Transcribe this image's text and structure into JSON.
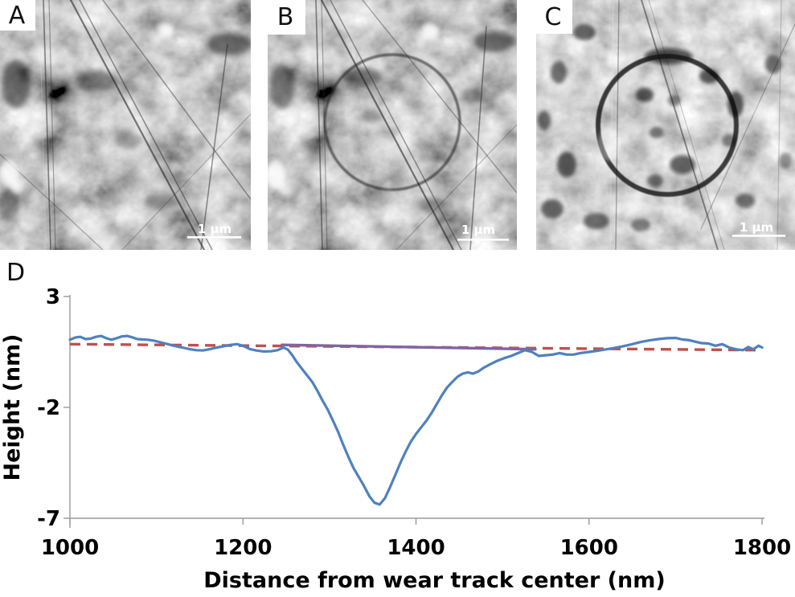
{
  "figure": {
    "panels": [
      {
        "label": "A",
        "scale_bar_label": "1 μm"
      },
      {
        "label": "B",
        "scale_bar_label": "1 μm"
      },
      {
        "label": "C",
        "scale_bar_label": "1 μm"
      }
    ],
    "chart_panel_label": "D"
  },
  "chart_data": {
    "type": "line",
    "title": "",
    "xlabel": "Distance from wear track center (nm)",
    "ylabel": "Height (nm)",
    "xlim": [
      1000,
      1800
    ],
    "ylim": [
      -7,
      3
    ],
    "xticks": [
      1000,
      1200,
      1400,
      1600,
      1800
    ],
    "yticks": [
      3,
      -2,
      -7
    ],
    "grid": false,
    "legend": false,
    "axis_color": "#9a9a9a",
    "series": [
      {
        "name": "baseline-fit-dashed",
        "color": "#C0504D",
        "style": "dashed",
        "width": 3.4,
        "points": [
          [
            1000,
            0.85
          ],
          [
            1800,
            0.58
          ]
        ]
      },
      {
        "name": "indent-region-level",
        "color": "#8064A2",
        "style": "solid",
        "width": 3.4,
        "points": [
          [
            1245,
            0.82
          ],
          [
            1538,
            0.62
          ]
        ]
      },
      {
        "name": "afm-height-profile",
        "color": "#4F81BD",
        "style": "solid",
        "width": 3.2,
        "points": [
          [
            1000,
            1.05
          ],
          [
            1006,
            1.15
          ],
          [
            1012,
            1.18
          ],
          [
            1018,
            1.08
          ],
          [
            1024,
            1.1
          ],
          [
            1030,
            1.18
          ],
          [
            1036,
            1.22
          ],
          [
            1042,
            1.12
          ],
          [
            1048,
            1.05
          ],
          [
            1054,
            1.12
          ],
          [
            1060,
            1.2
          ],
          [
            1066,
            1.22
          ],
          [
            1072,
            1.16
          ],
          [
            1078,
            1.08
          ],
          [
            1084,
            1.06
          ],
          [
            1090,
            1.05
          ],
          [
            1098,
            1.0
          ],
          [
            1106,
            0.92
          ],
          [
            1114,
            0.84
          ],
          [
            1122,
            0.76
          ],
          [
            1130,
            0.7
          ],
          [
            1138,
            0.63
          ],
          [
            1146,
            0.58
          ],
          [
            1154,
            0.57
          ],
          [
            1162,
            0.63
          ],
          [
            1170,
            0.7
          ],
          [
            1178,
            0.76
          ],
          [
            1186,
            0.82
          ],
          [
            1193,
            0.85
          ],
          [
            1200,
            0.78
          ],
          [
            1208,
            0.63
          ],
          [
            1216,
            0.56
          ],
          [
            1224,
            0.52
          ],
          [
            1232,
            0.53
          ],
          [
            1240,
            0.58
          ],
          [
            1247,
            0.7
          ],
          [
            1252,
            0.6
          ],
          [
            1257,
            0.35
          ],
          [
            1262,
            0.05
          ],
          [
            1268,
            -0.25
          ],
          [
            1274,
            -0.55
          ],
          [
            1280,
            -0.85
          ],
          [
            1286,
            -1.25
          ],
          [
            1292,
            -1.7
          ],
          [
            1298,
            -2.1
          ],
          [
            1304,
            -2.6
          ],
          [
            1310,
            -3.1
          ],
          [
            1316,
            -3.7
          ],
          [
            1322,
            -4.25
          ],
          [
            1328,
            -4.75
          ],
          [
            1334,
            -5.15
          ],
          [
            1340,
            -5.55
          ],
          [
            1346,
            -6.0
          ],
          [
            1352,
            -6.3
          ],
          [
            1358,
            -6.38
          ],
          [
            1364,
            -6.1
          ],
          [
            1370,
            -5.6
          ],
          [
            1376,
            -5.05
          ],
          [
            1382,
            -4.5
          ],
          [
            1388,
            -4.0
          ],
          [
            1394,
            -3.55
          ],
          [
            1400,
            -3.2
          ],
          [
            1406,
            -2.9
          ],
          [
            1412,
            -2.6
          ],
          [
            1418,
            -2.25
          ],
          [
            1424,
            -1.85
          ],
          [
            1430,
            -1.45
          ],
          [
            1436,
            -1.1
          ],
          [
            1442,
            -0.85
          ],
          [
            1448,
            -0.62
          ],
          [
            1454,
            -0.48
          ],
          [
            1460,
            -0.42
          ],
          [
            1466,
            -0.48
          ],
          [
            1472,
            -0.38
          ],
          [
            1478,
            -0.22
          ],
          [
            1486,
            -0.05
          ],
          [
            1494,
            0.1
          ],
          [
            1502,
            0.22
          ],
          [
            1510,
            0.32
          ],
          [
            1518,
            0.45
          ],
          [
            1526,
            0.58
          ],
          [
            1534,
            0.5
          ],
          [
            1542,
            0.32
          ],
          [
            1550,
            0.35
          ],
          [
            1558,
            0.38
          ],
          [
            1566,
            0.45
          ],
          [
            1574,
            0.38
          ],
          [
            1582,
            0.38
          ],
          [
            1590,
            0.45
          ],
          [
            1600,
            0.5
          ],
          [
            1610,
            0.55
          ],
          [
            1620,
            0.62
          ],
          [
            1630,
            0.68
          ],
          [
            1640,
            0.76
          ],
          [
            1650,
            0.85
          ],
          [
            1660,
            0.95
          ],
          [
            1670,
            1.02
          ],
          [
            1680,
            1.08
          ],
          [
            1690,
            1.12
          ],
          [
            1700,
            1.13
          ],
          [
            1708,
            1.06
          ],
          [
            1716,
            1.03
          ],
          [
            1724,
            0.95
          ],
          [
            1730,
            0.9
          ],
          [
            1738,
            0.88
          ],
          [
            1746,
            0.78
          ],
          [
            1754,
            0.85
          ],
          [
            1762,
            0.7
          ],
          [
            1770,
            0.62
          ],
          [
            1778,
            0.58
          ],
          [
            1784,
            0.72
          ],
          [
            1790,
            0.62
          ],
          [
            1796,
            0.78
          ],
          [
            1800,
            0.7
          ]
        ]
      }
    ]
  }
}
